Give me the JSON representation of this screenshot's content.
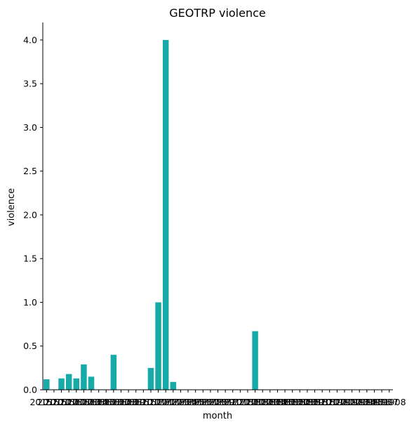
{
  "chart_data": {
    "type": "bar",
    "title": "GEOTRP violence",
    "xlabel": "month",
    "ylabel": "violence",
    "ylim": [
      0,
      4.2
    ],
    "yticks": [
      "0.0",
      "0.5",
      "1.0",
      "1.5",
      "2.0",
      "2.5",
      "3.0",
      "3.5",
      "4.0"
    ],
    "ytick_values": [
      0,
      0.5,
      1.0,
      1.5,
      2.0,
      2.5,
      3.0,
      3.5,
      4.0
    ],
    "categories": [
      "201510",
      "201511",
      "201512",
      "201601",
      "201602",
      "201603",
      "201604",
      "201605",
      "201606",
      "201607",
      "201608",
      "201609",
      "201610",
      "201611",
      "201612",
      "201701",
      "201702",
      "201703",
      "201704",
      "201705",
      "201706",
      "201707",
      "201708",
      "201709",
      "201710",
      "201711",
      "201712",
      "201801",
      "201802",
      "201803",
      "201804",
      "201805",
      "201806",
      "201807",
      "201808",
      "201809",
      "201810",
      "201811",
      "201812",
      "201901",
      "201902",
      "201903",
      "201904",
      "201905",
      "201906",
      "201907",
      "201908"
    ],
    "values": [
      0.12,
      0.0,
      0.13,
      0.18,
      0.13,
      0.29,
      0.15,
      0.0,
      0.0,
      0.4,
      0.0,
      0.0,
      0.0,
      0.0,
      0.25,
      1.0,
      4.0,
      0.09,
      0.0,
      0.0,
      0.0,
      0.0,
      0.0,
      0.0,
      0.0,
      0.0,
      0.0,
      0.0,
      0.67,
      0.0,
      0.0,
      0.0,
      0.0,
      0.0,
      0.0,
      0.0,
      0.0,
      0.0,
      0.0,
      0.0,
      0.0,
      0.0,
      0.0,
      0.0,
      0.0,
      0.0,
      0.0
    ],
    "bar_color": "#17aaa9",
    "grid": false
  }
}
